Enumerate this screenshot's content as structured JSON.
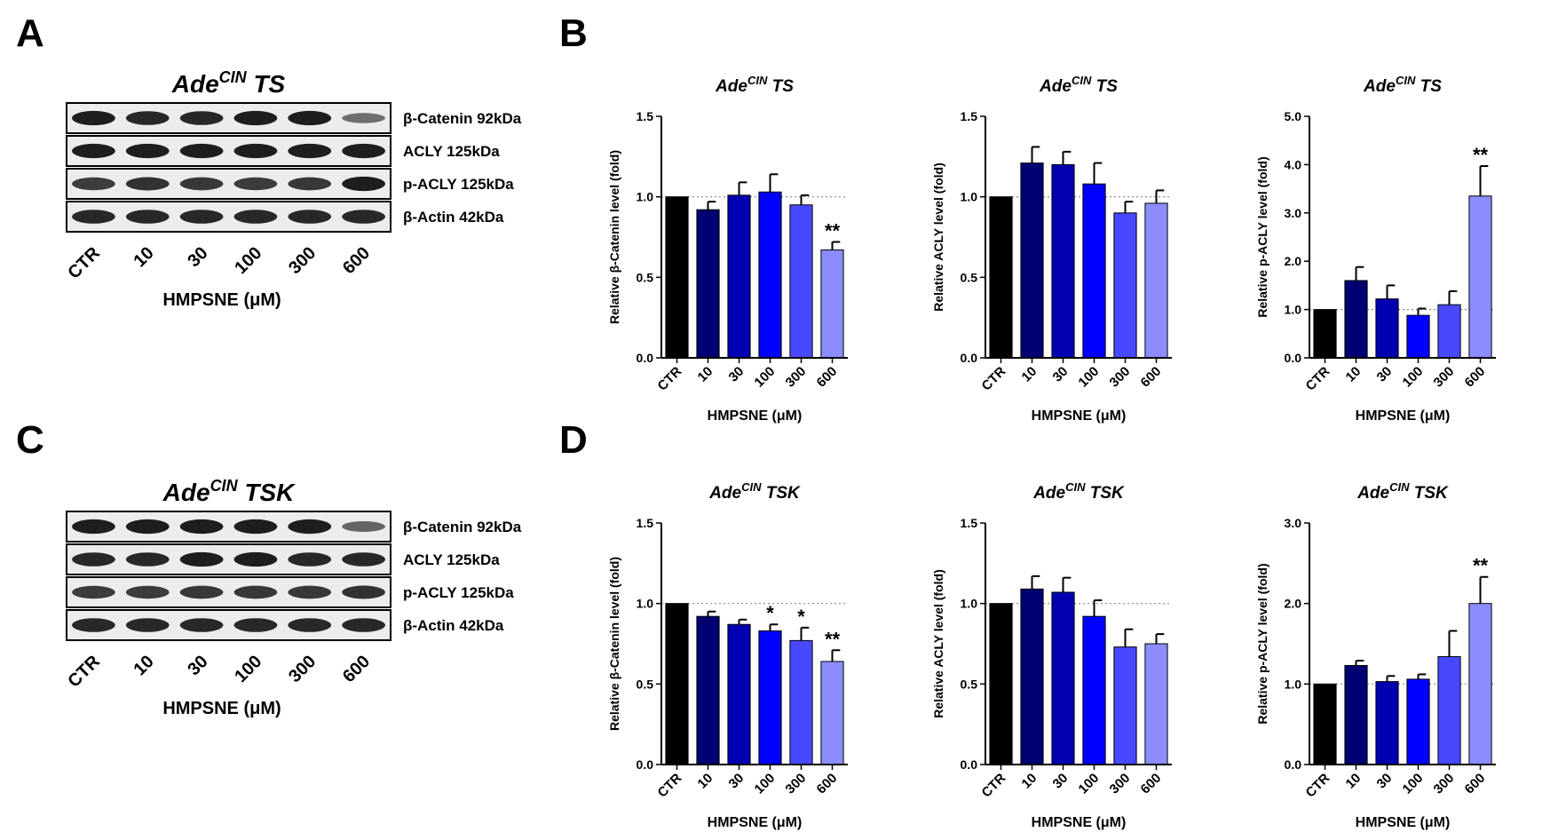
{
  "panel_letters": [
    "A",
    "B",
    "C",
    "D"
  ],
  "blot_panels": [
    {
      "panel": "A",
      "title_main": "Ade",
      "title_sup": "CIN",
      "title_suffix": "TS",
      "rows": [
        "β-Catenin 92kDa",
        "ACLY 125kDa",
        "p-ACLY 125kDa",
        "β-Actin 42kDa"
      ],
      "lane_labels": [
        "CTR",
        "10",
        "30",
        "100",
        "300",
        "600"
      ],
      "xlabel": "HMPSNE (μM)",
      "band_intensity": [
        [
          0.85,
          0.8,
          0.8,
          0.85,
          0.85,
          0.45
        ],
        [
          0.85,
          0.85,
          0.85,
          0.85,
          0.85,
          0.85
        ],
        [
          0.7,
          0.75,
          0.72,
          0.7,
          0.72,
          0.85
        ],
        [
          0.8,
          0.8,
          0.8,
          0.8,
          0.8,
          0.8
        ]
      ]
    },
    {
      "panel": "C",
      "title_main": "Ade",
      "title_sup": "CIN",
      "title_suffix": "TSK",
      "rows": [
        "β-Catenin 92kDa",
        "ACLY 125kDa",
        "p-ACLY 125kDa",
        "β-Actin 42kDa"
      ],
      "lane_labels": [
        "CTR",
        "10",
        "30",
        "100",
        "300",
        "600"
      ],
      "xlabel": "HMPSNE (μM)",
      "band_intensity": [
        [
          0.85,
          0.85,
          0.85,
          0.85,
          0.85,
          0.5
        ],
        [
          0.8,
          0.8,
          0.85,
          0.85,
          0.8,
          0.8
        ],
        [
          0.7,
          0.7,
          0.72,
          0.72,
          0.72,
          0.75
        ],
        [
          0.8,
          0.8,
          0.8,
          0.8,
          0.8,
          0.8
        ]
      ]
    }
  ],
  "bar_colors": [
    "#000000",
    "#000070",
    "#0000b0",
    "#0000ff",
    "#4848ff",
    "#8c8cff"
  ],
  "chart_data": [
    {
      "panel": "B",
      "type": "bar",
      "title_main": "Ade",
      "title_sup": "CIN",
      "title_suffix": "TS",
      "categories": [
        "CTR",
        "10",
        "30",
        "100",
        "300",
        "600"
      ],
      "values": [
        1.0,
        0.92,
        1.01,
        1.03,
        0.95,
        0.67
      ],
      "errors": [
        0,
        0.05,
        0.08,
        0.11,
        0.06,
        0.05
      ],
      "significance": [
        "",
        "",
        "",
        "",
        "",
        "**"
      ],
      "xlabel": "HMPSNE (μM)",
      "ylabel": "Relative β-Catenin level (fold)",
      "ylim": [
        0,
        1.5
      ],
      "yticks": [
        "0.0",
        "0.5",
        "1.0",
        "1.5"
      ],
      "reference_line": 1.0
    },
    {
      "panel": "B",
      "type": "bar",
      "title_main": "Ade",
      "title_sup": "CIN",
      "title_suffix": "TS",
      "categories": [
        "CTR",
        "10",
        "30",
        "100",
        "300",
        "600"
      ],
      "values": [
        1.0,
        1.21,
        1.2,
        1.08,
        0.9,
        0.96
      ],
      "errors": [
        0,
        0.1,
        0.08,
        0.13,
        0.07,
        0.08
      ],
      "significance": [
        "",
        "",
        "",
        "",
        "",
        ""
      ],
      "xlabel": "HMPSNE (μM)",
      "ylabel": "Relative ACLY level (fold)",
      "ylim": [
        0,
        1.5
      ],
      "yticks": [
        "0.0",
        "0.5",
        "1.0",
        "1.5"
      ],
      "reference_line": 1.0
    },
    {
      "panel": "B",
      "type": "bar",
      "title_main": "Ade",
      "title_sup": "CIN",
      "title_suffix": "TS",
      "categories": [
        "CTR",
        "10",
        "30",
        "100",
        "300",
        "600"
      ],
      "values": [
        1.0,
        1.6,
        1.22,
        0.88,
        1.1,
        3.35
      ],
      "errors": [
        0,
        0.28,
        0.28,
        0.14,
        0.28,
        0.62
      ],
      "significance": [
        "",
        "",
        "",
        "",
        "",
        "**"
      ],
      "xlabel": "HMPSNE (μM)",
      "ylabel": "Relative p-ACLY level (fold)",
      "ylim": [
        0,
        5.0
      ],
      "yticks": [
        "0.0",
        "1.0",
        "2.0",
        "3.0",
        "4.0",
        "5.0"
      ],
      "reference_line": 1.0
    },
    {
      "panel": "D",
      "type": "bar",
      "title_main": "Ade",
      "title_sup": "CIN",
      "title_suffix": "TSK",
      "categories": [
        "CTR",
        "10",
        "30",
        "100",
        "300",
        "600"
      ],
      "values": [
        1.0,
        0.92,
        0.87,
        0.83,
        0.77,
        0.64
      ],
      "errors": [
        0,
        0.03,
        0.03,
        0.04,
        0.08,
        0.07
      ],
      "significance": [
        "",
        "",
        "",
        "*",
        "*",
        "**"
      ],
      "xlabel": "HMPSNE (μM)",
      "ylabel": "Relative β-Catenin level (fold)",
      "ylim": [
        0,
        1.5
      ],
      "yticks": [
        "0.0",
        "0.5",
        "1.0",
        "1.5"
      ],
      "reference_line": 1.0
    },
    {
      "panel": "D",
      "type": "bar",
      "title_main": "Ade",
      "title_sup": "CIN",
      "title_suffix": "TSK",
      "categories": [
        "CTR",
        "10",
        "30",
        "100",
        "300",
        "600"
      ],
      "values": [
        1.0,
        1.09,
        1.07,
        0.92,
        0.73,
        0.75
      ],
      "errors": [
        0,
        0.08,
        0.09,
        0.1,
        0.11,
        0.06
      ],
      "significance": [
        "",
        "",
        "",
        "",
        "",
        ""
      ],
      "xlabel": "HMPSNE (μM)",
      "ylabel": "Relative ACLY level (fold)",
      "ylim": [
        0,
        1.5
      ],
      "yticks": [
        "0.0",
        "0.5",
        "1.0",
        "1.5"
      ],
      "reference_line": 1.0
    },
    {
      "panel": "D",
      "type": "bar",
      "title_main": "Ade",
      "title_sup": "CIN",
      "title_suffix": "TSK",
      "categories": [
        "CTR",
        "10",
        "30",
        "100",
        "300",
        "600"
      ],
      "values": [
        1.0,
        1.23,
        1.03,
        1.06,
        1.34,
        2.0
      ],
      "errors": [
        0,
        0.06,
        0.07,
        0.06,
        0.32,
        0.33
      ],
      "significance": [
        "",
        "",
        "",
        "",
        "",
        "**"
      ],
      "xlabel": "HMPSNE (μM)",
      "ylabel": "Relative p-ACLY level (fold)",
      "ylim": [
        0,
        3.0
      ],
      "yticks": [
        "0.0",
        "1.0",
        "2.0",
        "3.0"
      ],
      "reference_line": 1.0
    }
  ]
}
